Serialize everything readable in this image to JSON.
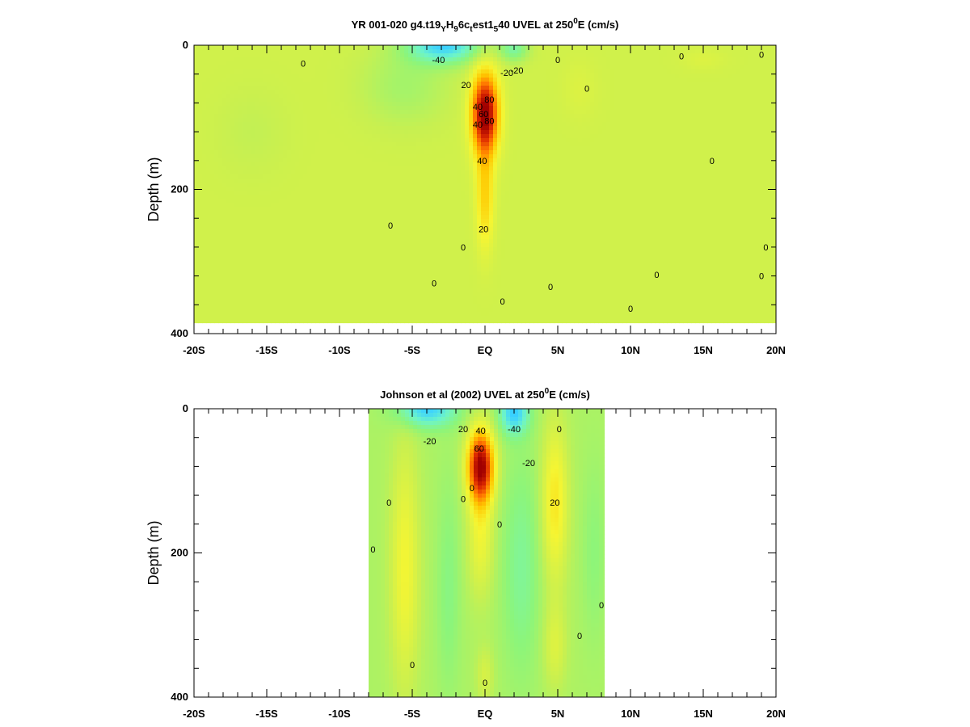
{
  "chart_data": [
    {
      "type": "heatmap",
      "title": {
        "p1": "YR 001-020 g4.t19",
        "s1": "Y",
        "p2": "H",
        "s2": "9",
        "p3": "6c",
        "s3": "t",
        "p4": "est1",
        "s4": "5",
        "p5": "40 UVEL at 250",
        "sup": "0",
        "p6": "E (cm/s)"
      },
      "ylabel": "Depth (m)",
      "xlabel": "",
      "x_ticks": [
        {
          "v": -20,
          "label": "-20S"
        },
        {
          "v": -15,
          "label": "-15S"
        },
        {
          "v": -10,
          "label": "-10S"
        },
        {
          "v": -5,
          "label": "-5S"
        },
        {
          "v": 0,
          "label": "EQ"
        },
        {
          "v": 5,
          "label": "5N"
        },
        {
          "v": 10,
          "label": "10N"
        },
        {
          "v": 15,
          "label": "15N"
        },
        {
          "v": 20,
          "label": "20N"
        }
      ],
      "y_ticks": [
        {
          "v": 0,
          "label": "0"
        },
        {
          "v": 200,
          "label": "200"
        },
        {
          "v": 400,
          "label": "400"
        }
      ],
      "xlim": [
        -20,
        20
      ],
      "ylim": [
        400,
        0
      ],
      "data_extent": {
        "x": [
          -20,
          20
        ],
        "depth": [
          0,
          385
        ]
      },
      "colormap": [
        "#00b4ff",
        "#3cd2ff",
        "#6ef5c8",
        "#8cf57a",
        "#c8f050",
        "#f5f532",
        "#ffc800",
        "#ff7800",
        "#dc2800",
        "#a00000"
      ],
      "color_range": [
        -60,
        80
      ],
      "background": 5,
      "features": [
        {
          "x": 0.0,
          "z": 95,
          "sx": 0.9,
          "sz": 55,
          "amp": 80
        },
        {
          "x": 0.0,
          "z": 210,
          "sx": 0.6,
          "sz": 70,
          "amp": 25
        },
        {
          "x": -2.8,
          "z": 0,
          "sx": 2.5,
          "sz": 25,
          "amp": -48
        },
        {
          "x": 2.0,
          "z": 5,
          "sx": 1.0,
          "sz": 18,
          "amp": -25
        },
        {
          "x": -5.5,
          "z": 55,
          "sx": 3.0,
          "sz": 55,
          "amp": -12
        },
        {
          "x": -16.0,
          "z": 120,
          "sx": 2.5,
          "sz": 60,
          "amp": -4
        },
        {
          "x": 6.5,
          "z": 60,
          "sx": 1.2,
          "sz": 40,
          "amp": 4
        },
        {
          "x": 15.0,
          "z": 20,
          "sx": 1.5,
          "sz": 15,
          "amp": 4
        }
      ],
      "contour_labels": [
        {
          "x": -3.2,
          "z": 20,
          "text": "-40"
        },
        {
          "x": -1.3,
          "z": 55,
          "text": "20"
        },
        {
          "x": -0.5,
          "z": 85,
          "text": "40"
        },
        {
          "x": -0.5,
          "z": 110,
          "text": "40"
        },
        {
          "x": -0.1,
          "z": 95,
          "text": "60"
        },
        {
          "x": 0.3,
          "z": 75,
          "text": "80"
        },
        {
          "x": 0.3,
          "z": 105,
          "text": "80"
        },
        {
          "x": -0.2,
          "z": 160,
          "text": "40"
        },
        {
          "x": -0.1,
          "z": 255,
          "text": "20"
        },
        {
          "x": 2.2,
          "z": 35,
          "text": "-20"
        },
        {
          "x": 1.5,
          "z": 38,
          "text": "-20"
        },
        {
          "x": -12.5,
          "z": 25,
          "text": "0"
        },
        {
          "x": -6.5,
          "z": 250,
          "text": "0"
        },
        {
          "x": -3.5,
          "z": 330,
          "text": "0"
        },
        {
          "x": -1.5,
          "z": 280,
          "text": "0"
        },
        {
          "x": 1.2,
          "z": 355,
          "text": "0"
        },
        {
          "x": 5.0,
          "z": 20,
          "text": "0"
        },
        {
          "x": 4.5,
          "z": 335,
          "text": "0"
        },
        {
          "x": 7.0,
          "z": 60,
          "text": "0"
        },
        {
          "x": 10.0,
          "z": 365,
          "text": "0"
        },
        {
          "x": 11.8,
          "z": 318,
          "text": "0"
        },
        {
          "x": 13.5,
          "z": 15,
          "text": "0"
        },
        {
          "x": 15.6,
          "z": 160,
          "text": "0"
        },
        {
          "x": 19.0,
          "z": 13,
          "text": "0"
        },
        {
          "x": 19.3,
          "z": 280,
          "text": "0"
        },
        {
          "x": 19.0,
          "z": 320,
          "text": "0"
        }
      ]
    },
    {
      "type": "heatmap",
      "title": {
        "p1": "Johnson et al (2002) UVEL at 250",
        "sup": "0",
        "p6": "E (cm/s)"
      },
      "ylabel": "Depth (m)",
      "xlabel": "",
      "x_ticks": [
        {
          "v": -20,
          "label": "-20S"
        },
        {
          "v": -15,
          "label": "-15S"
        },
        {
          "v": -10,
          "label": "-10S"
        },
        {
          "v": -5,
          "label": "-5S"
        },
        {
          "v": 0,
          "label": "EQ"
        },
        {
          "v": 5,
          "label": "5N"
        },
        {
          "v": 10,
          "label": "10N"
        },
        {
          "v": 15,
          "label": "15N"
        },
        {
          "v": 20,
          "label": "20N"
        }
      ],
      "y_ticks": [
        {
          "v": 0,
          "label": "0"
        },
        {
          "v": 200,
          "label": "200"
        },
        {
          "v": 400,
          "label": "400"
        }
      ],
      "xlim": [
        -20,
        20
      ],
      "ylim": [
        400,
        0
      ],
      "data_extent": {
        "x": [
          -8,
          8.2
        ],
        "depth": [
          0,
          400
        ]
      },
      "colormap": [
        "#00b4ff",
        "#3cd2ff",
        "#6ef5c8",
        "#8cf57a",
        "#c8f050",
        "#f5f532",
        "#ffc800",
        "#ff7800",
        "#dc2800",
        "#a00000"
      ],
      "color_range": [
        -60,
        80
      ],
      "background": -5,
      "features": [
        {
          "x": -0.3,
          "z": 80,
          "sx": 0.9,
          "sz": 50,
          "amp": 85
        },
        {
          "x": -0.3,
          "z": 180,
          "sx": 0.9,
          "sz": 80,
          "amp": 20
        },
        {
          "x": 0.0,
          "z": 370,
          "sx": 0.6,
          "sz": 40,
          "amp": 12
        },
        {
          "x": -5.5,
          "z": 220,
          "sx": 1.0,
          "sz": 170,
          "amp": 22
        },
        {
          "x": 4.8,
          "z": 130,
          "sx": 0.9,
          "sz": 110,
          "amp": 28
        },
        {
          "x": 4.8,
          "z": 330,
          "sx": 0.8,
          "sz": 60,
          "amp": 14
        },
        {
          "x": -4.0,
          "z": 0,
          "sx": 2.0,
          "sz": 25,
          "amp": -40
        },
        {
          "x": 2.0,
          "z": 5,
          "sx": 1.0,
          "sz": 30,
          "amp": -40
        },
        {
          "x": 2.5,
          "z": 220,
          "sx": 1.3,
          "sz": 150,
          "amp": -14
        },
        {
          "x": -2.5,
          "z": 250,
          "sx": 0.8,
          "sz": 150,
          "amp": -10
        },
        {
          "x": 7.5,
          "z": 200,
          "sx": 0.8,
          "sz": 120,
          "amp": -8
        }
      ],
      "contour_labels": [
        {
          "x": -3.8,
          "z": 45,
          "text": "-20"
        },
        {
          "x": 2.0,
          "z": 28,
          "text": "-40"
        },
        {
          "x": 3.0,
          "z": 75,
          "text": "-20"
        },
        {
          "x": -1.5,
          "z": 28,
          "text": "20"
        },
        {
          "x": -0.3,
          "z": 30,
          "text": "40"
        },
        {
          "x": -0.4,
          "z": 55,
          "text": "60"
        },
        {
          "x": -0.9,
          "z": 110,
          "text": "0"
        },
        {
          "x": -1.5,
          "z": 125,
          "text": "0"
        },
        {
          "x": 4.8,
          "z": 130,
          "text": "20"
        },
        {
          "x": 5.1,
          "z": 28,
          "text": "0"
        },
        {
          "x": -6.6,
          "z": 130,
          "text": "0"
        },
        {
          "x": -7.7,
          "z": 195,
          "text": "0"
        },
        {
          "x": -5.0,
          "z": 355,
          "text": "0"
        },
        {
          "x": 1.0,
          "z": 160,
          "text": "0"
        },
        {
          "x": 0.0,
          "z": 380,
          "text": "0"
        },
        {
          "x": 6.5,
          "z": 315,
          "text": "0"
        },
        {
          "x": 8.0,
          "z": 272,
          "text": "0"
        }
      ]
    }
  ]
}
